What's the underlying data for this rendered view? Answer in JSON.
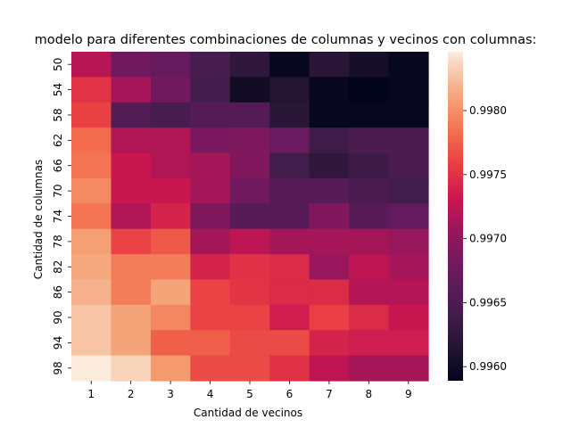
{
  "chart_data": {
    "type": "heatmap",
    "title": "modelo para diferentes combinaciones de columnas y vecinos con columnas:",
    "xlabel": "Cantidad de vecinos",
    "ylabel": "Cantidad de columnas",
    "x_categories": [
      "1",
      "2",
      "3",
      "4",
      "5",
      "6",
      "7",
      "8",
      "9"
    ],
    "y_categories": [
      "50",
      "54",
      "58",
      "62",
      "66",
      "70",
      "74",
      "78",
      "82",
      "86",
      "90",
      "94",
      "98"
    ],
    "colorbar": {
      "min": 0.99589,
      "max": 0.99846,
      "ticks": [
        0.996,
        0.9965,
        0.997,
        0.9975,
        0.998
      ],
      "tick_labels": [
        "0.9960",
        "0.9965",
        "0.9970",
        "0.9975",
        "0.9980"
      ]
    },
    "colormap": "rocket",
    "values": [
      [
        0.99721,
        0.9968,
        0.9967,
        0.99645,
        0.99625,
        0.99592,
        0.9962,
        0.99605,
        0.99592
      ],
      [
        0.99751,
        0.99712,
        0.9968,
        0.99642,
        0.996,
        0.99615,
        0.99592,
        0.99589,
        0.99592
      ],
      [
        0.99759,
        0.99655,
        0.99645,
        0.99658,
        0.99658,
        0.9962,
        0.99592,
        0.99592,
        0.99592
      ],
      [
        0.99782,
        0.99718,
        0.99718,
        0.99685,
        0.99688,
        0.99675,
        0.99638,
        0.9965,
        0.9965
      ],
      [
        0.99786,
        0.9973,
        0.99718,
        0.99712,
        0.9969,
        0.9964,
        0.99626,
        0.99636,
        0.99648
      ],
      [
        0.99797,
        0.9973,
        0.9973,
        0.99712,
        0.9968,
        0.9966,
        0.9966,
        0.9965,
        0.9964
      ],
      [
        0.99786,
        0.99718,
        0.9974,
        0.99688,
        0.9966,
        0.9966,
        0.9969,
        0.9966,
        0.9967
      ],
      [
        0.99808,
        0.9976,
        0.99772,
        0.99712,
        0.99725,
        0.99712,
        0.99712,
        0.99712,
        0.99705
      ],
      [
        0.99812,
        0.9979,
        0.9979,
        0.9974,
        0.9975,
        0.99745,
        0.99705,
        0.99725,
        0.99712
      ],
      [
        0.99818,
        0.9979,
        0.9981,
        0.9976,
        0.99752,
        0.99745,
        0.99745,
        0.9972,
        0.9972
      ],
      [
        0.99828,
        0.9981,
        0.99795,
        0.9976,
        0.9976,
        0.99735,
        0.99758,
        0.99745,
        0.9973
      ],
      [
        0.99828,
        0.9981,
        0.99775,
        0.99775,
        0.99765,
        0.99765,
        0.9974,
        0.99735,
        0.99735
      ],
      [
        0.99846,
        0.99835,
        0.99805,
        0.99765,
        0.99765,
        0.9975,
        0.99725,
        0.99712,
        0.99712
      ]
    ]
  }
}
